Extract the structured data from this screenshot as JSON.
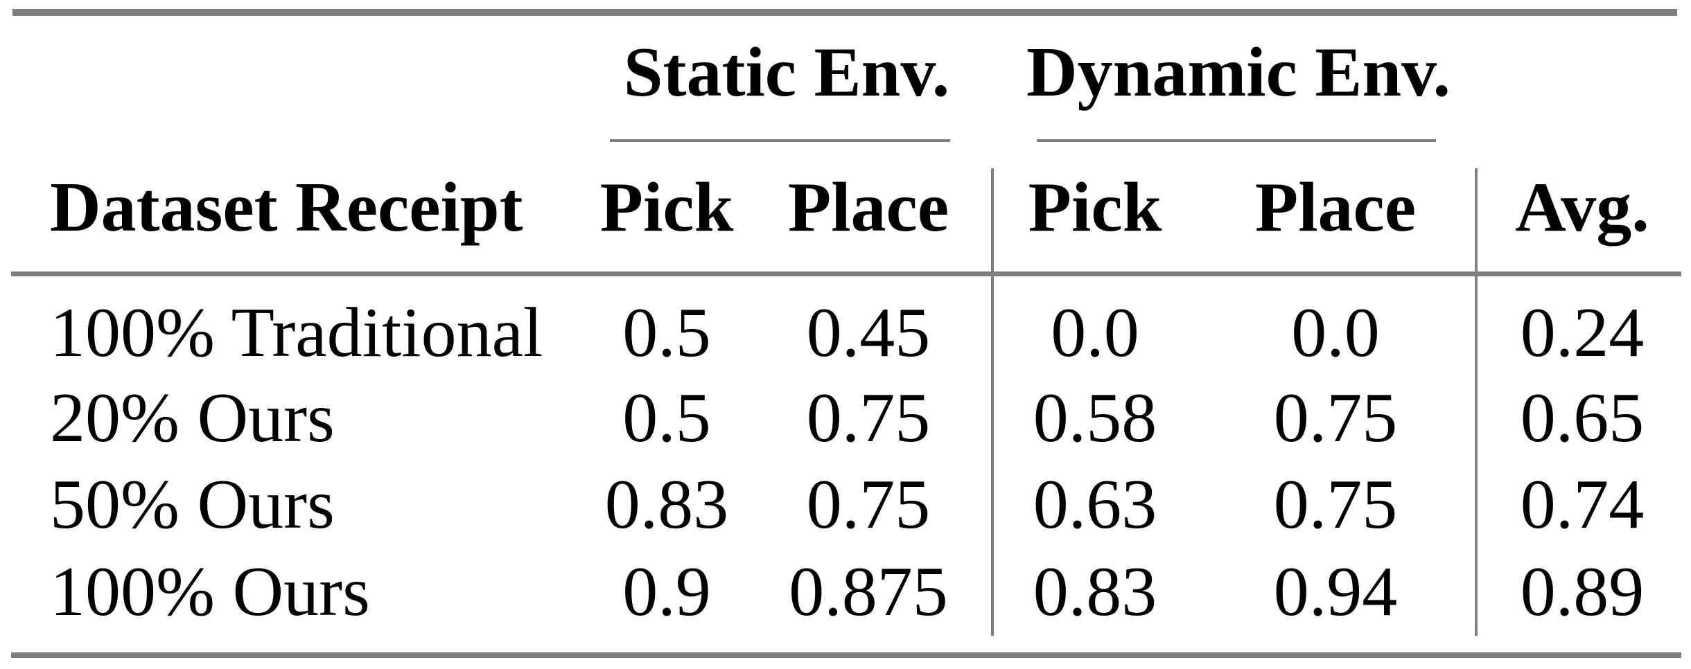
{
  "table": {
    "column_groups": [
      {
        "label": "Static Env."
      },
      {
        "label": "Dynamic Env."
      }
    ],
    "columns": {
      "label": "Dataset Receipt",
      "static_pick": "Pick",
      "static_place": "Place",
      "dynamic_pick": "Pick",
      "dynamic_place": "Place",
      "avg": "Avg."
    },
    "rows": [
      {
        "label": "100% Traditional",
        "values": [
          "0.5",
          "0.45",
          "0.0",
          "0.0",
          "0.24"
        ]
      },
      {
        "label": "20% Ours",
        "values": [
          "0.5",
          "0.75",
          "0.58",
          "0.75",
          "0.65"
        ]
      },
      {
        "label": "50% Ours",
        "values": [
          "0.83",
          "0.75",
          "0.63",
          "0.75",
          "0.74"
        ]
      },
      {
        "label": "100% Ours",
        "values": [
          "0.9",
          "0.875",
          "0.83",
          "0.94",
          "0.89"
        ]
      }
    ],
    "colors": {
      "rule_gray": "#7f7f7f",
      "text": "#000000",
      "background": "#ffffff"
    }
  },
  "chart_data": {
    "type": "table",
    "title": "",
    "column_groups": [
      "Static Env.",
      "Dynamic Env."
    ],
    "columns": [
      "Dataset Receipt",
      "Static Pick",
      "Static Place",
      "Dynamic Pick",
      "Dynamic Place",
      "Avg."
    ],
    "rows": [
      [
        "100% Traditional",
        0.5,
        0.45,
        0.0,
        0.0,
        0.24
      ],
      [
        "20% Ours",
        0.5,
        0.75,
        0.58,
        0.75,
        0.65
      ],
      [
        "50% Ours",
        0.83,
        0.75,
        0.63,
        0.75,
        0.74
      ],
      [
        "100% Ours",
        0.9,
        0.875,
        0.83,
        0.94,
        0.89
      ]
    ]
  }
}
